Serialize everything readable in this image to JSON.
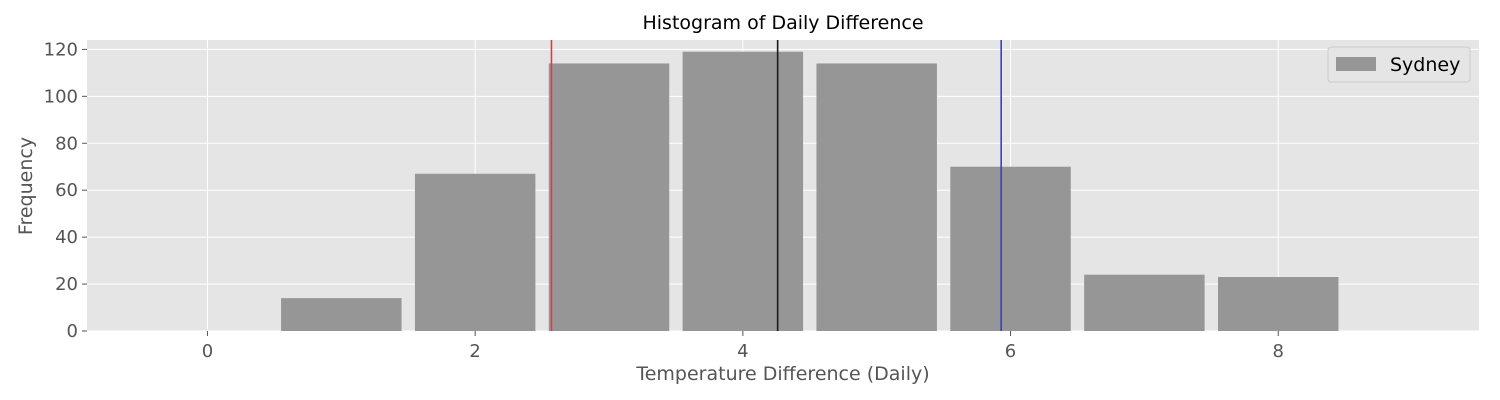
{
  "chart_data": {
    "type": "bar",
    "title": "Histogram of Daily Difference",
    "xlabel": "Temperature Difference (Daily)",
    "ylabel": "Frequency",
    "xlim": [
      -0.9,
      9.5
    ],
    "ylim": [
      0,
      124
    ],
    "xticks": [
      0,
      2,
      4,
      6,
      8
    ],
    "yticks": [
      0,
      20,
      40,
      60,
      80,
      100,
      120
    ],
    "grid": true,
    "legend_position": "top-right",
    "series": [
      {
        "name": "Sydney",
        "color": "#969696",
        "x": [
          1,
          2,
          3,
          4,
          5,
          6,
          7,
          8
        ],
        "values": [
          14,
          67,
          114,
          119,
          114,
          70,
          24,
          23
        ],
        "bar_width": 0.9
      }
    ],
    "vlines": [
      {
        "x": 2.57,
        "color": "#e8393a"
      },
      {
        "x": 4.26,
        "color": "#1a1a1a"
      },
      {
        "x": 5.93,
        "color": "#3a3ad0"
      }
    ]
  }
}
